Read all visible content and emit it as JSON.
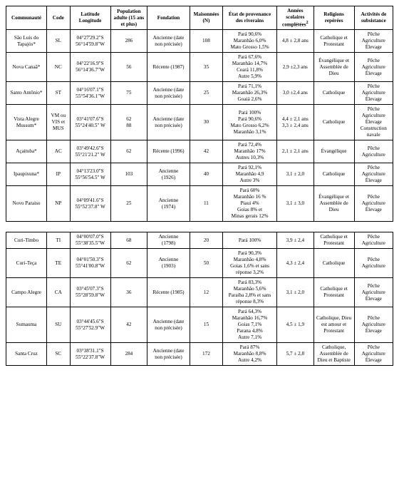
{
  "headers": {
    "communaute": "Communauté",
    "code": "Code",
    "latlon": "Latitude Longitude",
    "pop": "Population adulte (15 ans et plus)",
    "fondation": "Fondation",
    "maisonnees": "Maisonnées (N)",
    "provenance": "État de provenance des riverains",
    "annees": "Années scolaires complétées",
    "annees_sup": "2",
    "religions": "Religions repérées",
    "activites": "Activités de subsistance"
  },
  "colwidths": [
    "10.5%",
    "6%",
    "10.5%",
    "9.5%",
    "11%",
    "8.5%",
    "14%",
    "9.5%",
    "10.5%",
    "10%"
  ],
  "rows1": [
    {
      "communaute": "São Luis do Tapajós*",
      "code": "SL",
      "latlon": [
        "04°27'29.2\"S",
        "56°14'59.8\"W"
      ],
      "pop": "286",
      "fondation": [
        "Ancienne (date",
        "non précisée)"
      ],
      "maisonnees": "108",
      "provenance": [
        "Pará 90,6%",
        "Maranhão 6,0%",
        "Mato Grosso 1,5%"
      ],
      "annees": "4,8 ± 2,8 ans",
      "religions": [
        "Catholique et",
        "Protestant"
      ],
      "activites": [
        "Pêche",
        "Agriculture",
        "Élevage"
      ]
    },
    {
      "communaute": "Nova Canaã*",
      "code": "NC",
      "latlon": [
        "04°22'16.9\"S",
        "56°14'36.7\"W"
      ],
      "pop": "56",
      "fondation": [
        "Récente (1987)"
      ],
      "maisonnees": "35",
      "provenance": [
        "Pará 67,6%",
        "Maranhão 14,7%",
        "Ceará 11,8%",
        "Autre 5,9%"
      ],
      "annees": "2,9 ±2,3 ans",
      "religions": [
        "Évangélique et",
        "Assemblée de",
        "Dieu"
      ],
      "activites": [
        "Pêche",
        "Agriculture",
        "Élevage"
      ]
    },
    {
      "communaute": "Santo Antônio*",
      "code": "ST",
      "latlon": [
        "04°16'07.1\"S",
        "55°54'36.1\"W"
      ],
      "pop": "75",
      "fondation": [
        "Ancienne (date",
        "non précisée)"
      ],
      "maisonnees": "25",
      "provenance": [
        "Pará 71,1%",
        "Maranhão 26,3%",
        "Goaiá 2,6%"
      ],
      "annees": "3,0 ±2,4 ans",
      "religions": [
        "Catholique"
      ],
      "activites": [
        "Pêche",
        "Agriculture",
        "Élevage"
      ]
    },
    {
      "communaute": "Vista Alegre Mussum*",
      "code": "VM ou VIS et MUS",
      "latlon": [
        "03°41'07.6\"S",
        "55°24'40.5\" W"
      ],
      "pop": "62\n88",
      "fondation": [
        "Ancienne (date",
        "non précisée)"
      ],
      "maisonnees": "30",
      "provenance": [
        "Pará 100%",
        "Pará 90,6%",
        "Mato Grosso 6,2%",
        "Maranhão 3,1%"
      ],
      "annees": "4,4 ± 2,1 ans\n3,3 ± 2,4 ans",
      "religions": [
        "Catholique"
      ],
      "activites": [
        "Pêche",
        "Agriculture",
        "Élevage",
        "Construction",
        "navale"
      ]
    },
    {
      "communaute": "Açaituba*",
      "code": "AC",
      "latlon": [
        "03°49'42.6\"S",
        "55°21'21.2\" W"
      ],
      "pop": "62",
      "fondation": [
        "Récente (1996)"
      ],
      "maisonnees": "42",
      "provenance": [
        "Pará 72,4%",
        "Maranhão 17%",
        "Autres 10,3%"
      ],
      "annees": "2,1 ± 2,1 ans",
      "religions": [
        "Évangélique"
      ],
      "activites": [
        "Pêche",
        "Agriculture"
      ]
    },
    {
      "communaute": "Ipaupixuna*",
      "code": "IP",
      "latlon": [
        "04°13'23.0\"S",
        "55°56'54.5\" W"
      ],
      "pop": "103",
      "fondation": [
        "Ancienne",
        "(1926)"
      ],
      "maisonnees": "40",
      "provenance": [
        "Pará 92,1%",
        "Maranhão 4,9",
        "Autre 3%"
      ],
      "annees": "3,1 ± 2,0",
      "religions": [
        "Catholique"
      ],
      "activites": [
        "Pêche",
        "Agriculture",
        "Élevage"
      ]
    },
    {
      "communaute": "Novo Paraiso",
      "code": "NP",
      "latlon": [
        "04°09'41.6\"S",
        "55°52'37.8\" W"
      ],
      "pop": "25",
      "fondation": [
        "Ancienne",
        "(1974)"
      ],
      "maisonnees": "11",
      "provenance": [
        "Pará 60%",
        "Maranhão 16 %",
        "Piaui 4%",
        "Goias 8% et",
        "Minas gerais 12%"
      ],
      "annees": "3,1 ± 3,0",
      "religions": [
        "Évangélique et",
        "Assemblée de",
        "Dieu"
      ],
      "activites": [
        "Pêche",
        "Agriculture",
        "Élevage"
      ]
    }
  ],
  "rows2": [
    {
      "communaute": "Curi-Timbo",
      "code": "TI",
      "latlon": [
        "04°00'07.0\"S",
        "55°38'35.5\"W"
      ],
      "pop": "68",
      "fondation": [
        "Ancienne",
        "(1798)"
      ],
      "maisonnees": "20",
      "provenance": [
        "Pará 100%"
      ],
      "annees": "3,9 ± 2,4",
      "religions": [
        "Catholique et",
        "Protestant"
      ],
      "activites": [
        "Pêche",
        "Agriculture"
      ]
    },
    {
      "communaute": "Curi-Teça",
      "code": "TE",
      "latlon": [
        "04°01'50.3\"S",
        "55°41'00.8\"W"
      ],
      "pop": "62",
      "fondation": [
        "Ancienne",
        "(1903)"
      ],
      "maisonnees": "50",
      "provenance": [
        "Pará 90,3%",
        "Maranhão 4,8%",
        "Goias 1,6% et sans",
        "réponse 3,2%"
      ],
      "annees": "4,3 ± 2,4",
      "religions": [
        "Catholique"
      ],
      "activites": [
        "Pêche",
        "Agriculture"
      ]
    },
    {
      "communaute": "Campo Alegre",
      "code": "CA",
      "latlon": [
        "03°45'07.3\"S",
        "55°28'59.8\"W"
      ],
      "pop": "36",
      "fondation": [
        "Récente (1985)"
      ],
      "maisonnees": "12",
      "provenance": [
        "Pará 83,3%",
        "Maranhão 5,6%",
        "Paraiba 2,8% et sans",
        "réponse 8,3%"
      ],
      "annees": "3,1 ± 2,0",
      "religions": [
        "Catholique et",
        "Protestant"
      ],
      "activites": [
        "Pêche",
        "Agriculture",
        "Élevage"
      ]
    },
    {
      "communaute": "Sumauma",
      "code": "SU",
      "latlon": [
        "03°44'45.6\"S",
        "55°27'52.9\"W"
      ],
      "pop": "42",
      "fondation": [
        "Ancienne (date",
        "non précisée)"
      ],
      "maisonnees": "15",
      "provenance": [
        "Pará 64,3%",
        "Maranhão 16,7%",
        "Goias 7,1%",
        "Parana 4,8%",
        "Autre 7,1%"
      ],
      "annees": "4,5 ± 1,9",
      "religions": [
        "Catholique, Dieu",
        "est amour et",
        "Protestant"
      ],
      "activites": [
        "Pêche",
        "Agriculture",
        "Élevage"
      ]
    },
    {
      "communaute": "Santa Cruz",
      "code": "SC",
      "latlon": [
        "03°38'31.1\"S",
        "55°22'37.8\"W"
      ],
      "pop": "284",
      "fondation": [
        "Ancienne (date",
        "non précisée)"
      ],
      "maisonnees": "172",
      "provenance": [
        "Pará 87%",
        "Maranhão 8,8%",
        "Autre 4,2%"
      ],
      "annees": "5,7 ± 2,8",
      "religions": [
        "Catholique,",
        "Assemblée de",
        "Dieu et Baptiste"
      ],
      "activites": [
        "Pêche",
        "Agriculture",
        "Élevage"
      ]
    }
  ]
}
